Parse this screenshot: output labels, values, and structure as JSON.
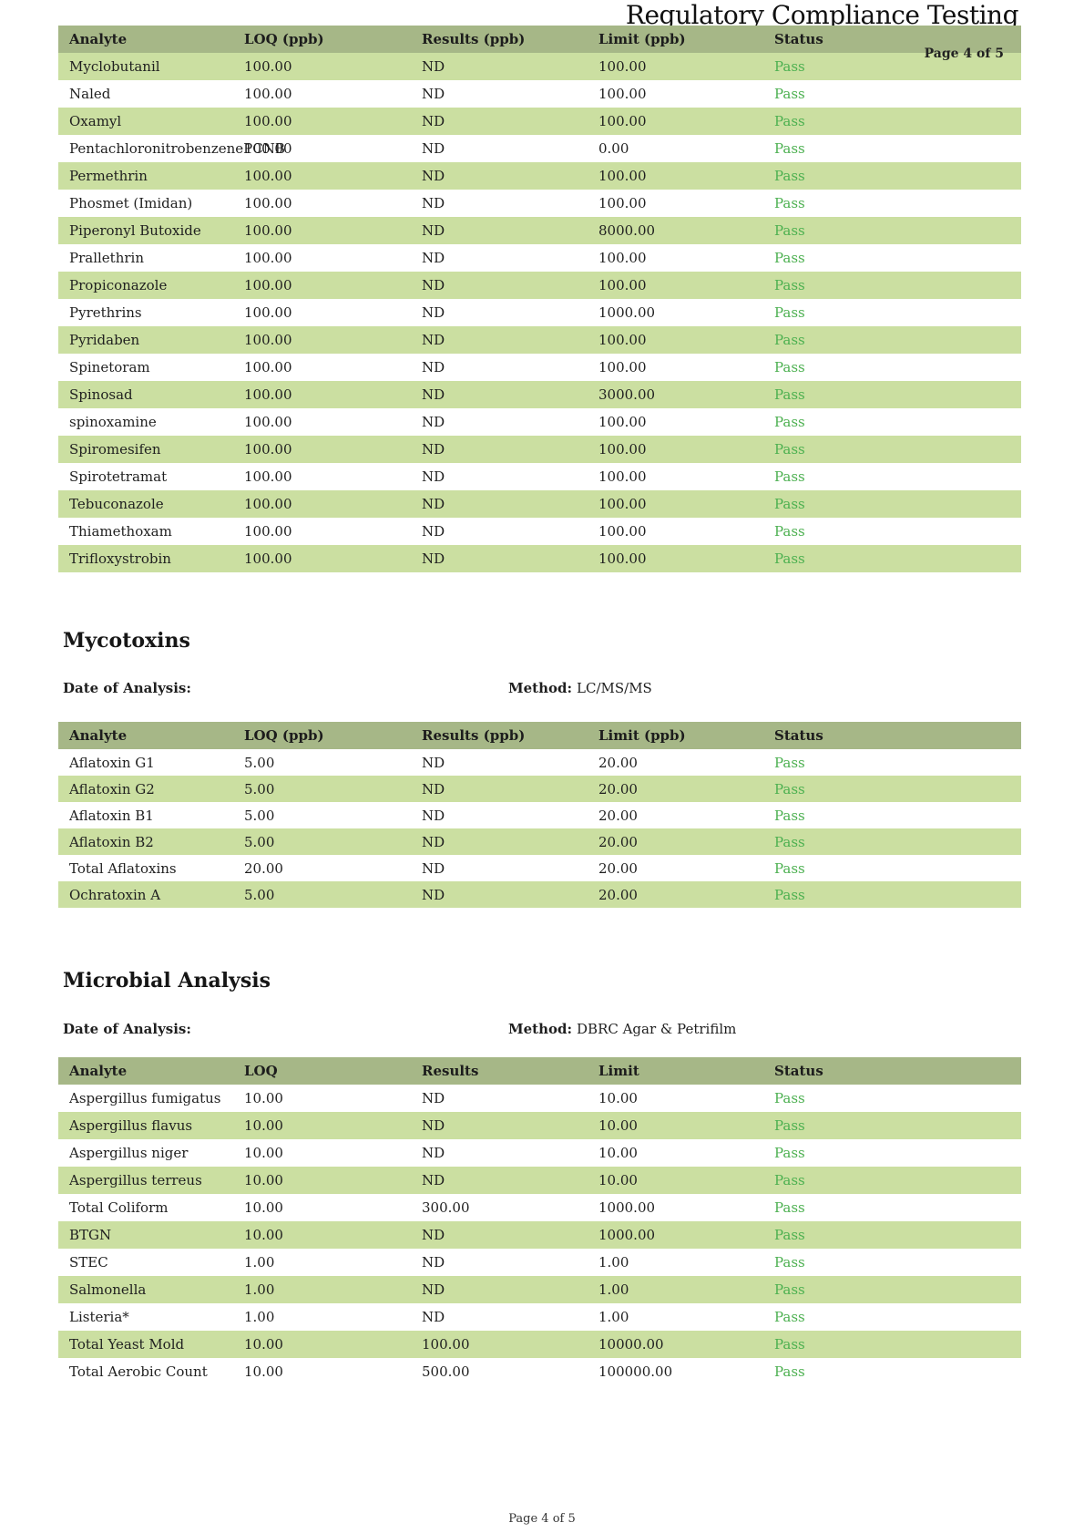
{
  "document": {
    "title": "Regulatory Compliance Testing",
    "page_indicator": "Page 4 of 5",
    "footer_page_label": "Page 4 of 5"
  },
  "labels": {
    "date_of_analysis": "Date of Analysis:",
    "method": "Method:"
  },
  "colors": {
    "table_header_bg": "#a6b787",
    "row_stripe_bg": "#cbdfa1",
    "pass_text": "#4cb050"
  },
  "tables": {
    "pesticides": {
      "columns": [
        "Analyte",
        "LOQ (ppb)",
        "Results (ppb)",
        "Limit (ppb)",
        "Status"
      ],
      "rows": [
        [
          "Myclobutanil",
          "100.00",
          "ND",
          "100.00",
          "Pass"
        ],
        [
          "Naled",
          "100.00",
          "ND",
          "100.00",
          "Pass"
        ],
        [
          "Oxamyl",
          "100.00",
          "ND",
          "100.00",
          "Pass"
        ],
        [
          "PentachloronitrobenzenePCNB",
          "100.00",
          "ND",
          "0.00",
          "Pass"
        ],
        [
          "Permethrin",
          "100.00",
          "ND",
          "100.00",
          "Pass"
        ],
        [
          "Phosmet (Imidan)",
          "100.00",
          "ND",
          "100.00",
          "Pass"
        ],
        [
          "Piperonyl Butoxide",
          "100.00",
          "ND",
          "8000.00",
          "Pass"
        ],
        [
          "Prallethrin",
          "100.00",
          "ND",
          "100.00",
          "Pass"
        ],
        [
          "Propiconazole",
          "100.00",
          "ND",
          "100.00",
          "Pass"
        ],
        [
          "Pyrethrins",
          "100.00",
          "ND",
          "1000.00",
          "Pass"
        ],
        [
          "Pyridaben",
          "100.00",
          "ND",
          "100.00",
          "Pass"
        ],
        [
          "Spinetoram",
          "100.00",
          "ND",
          "100.00",
          "Pass"
        ],
        [
          "Spinosad",
          "100.00",
          "ND",
          "3000.00",
          "Pass"
        ],
        [
          "spinoxamine",
          "100.00",
          "ND",
          "100.00",
          "Pass"
        ],
        [
          "Spiromesifen",
          "100.00",
          "ND",
          "100.00",
          "Pass"
        ],
        [
          "Spirotetramat",
          "100.00",
          "ND",
          "100.00",
          "Pass"
        ],
        [
          "Tebuconazole",
          "100.00",
          "ND",
          "100.00",
          "Pass"
        ],
        [
          "Thiamethoxam",
          "100.00",
          "ND",
          "100.00",
          "Pass"
        ],
        [
          "Trifloxystrobin",
          "100.00",
          "ND",
          "100.00",
          "Pass"
        ]
      ]
    },
    "mycotoxins": {
      "heading": "Mycotoxins",
      "method_value": "LC/MS/MS",
      "columns": [
        "Analyte",
        "LOQ (ppb)",
        "Results (ppb)",
        "Limit (ppb)",
        "Status"
      ],
      "rows": [
        [
          "Aflatoxin G1",
          "5.00",
          "ND",
          "20.00",
          "Pass"
        ],
        [
          "Aflatoxin G2",
          "5.00",
          "ND",
          "20.00",
          "Pass"
        ],
        [
          "Aflatoxin B1",
          "5.00",
          "ND",
          "20.00",
          "Pass"
        ],
        [
          "Aflatoxin B2",
          "5.00",
          "ND",
          "20.00",
          "Pass"
        ],
        [
          "Total Aflatoxins",
          "20.00",
          "ND",
          "20.00",
          "Pass"
        ],
        [
          "Ochratoxin A",
          "5.00",
          "ND",
          "20.00",
          "Pass"
        ]
      ]
    },
    "microbial": {
      "heading": "Microbial Analysis",
      "method_value": "DBRC Agar & Petrifilm",
      "columns": [
        "Analyte",
        "LOQ",
        "Results",
        "Limit",
        "Status"
      ],
      "rows": [
        [
          "Aspergillus fumigatus",
          "10.00",
          "ND",
          "10.00",
          "Pass"
        ],
        [
          "Aspergillus flavus",
          "10.00",
          "ND",
          "10.00",
          "Pass"
        ],
        [
          "Aspergillus niger",
          "10.00",
          "ND",
          "10.00",
          "Pass"
        ],
        [
          "Aspergillus terreus",
          "10.00",
          "ND",
          "10.00",
          "Pass"
        ],
        [
          "Total Coliform",
          "10.00",
          "300.00",
          "1000.00",
          "Pass"
        ],
        [
          "BTGN",
          "10.00",
          "ND",
          "1000.00",
          "Pass"
        ],
        [
          "STEC",
          "1.00",
          "ND",
          "1.00",
          "Pass"
        ],
        [
          "Salmonella",
          "1.00",
          "ND",
          "1.00",
          "Pass"
        ],
        [
          "Listeria*",
          "1.00",
          "ND",
          "1.00",
          "Pass"
        ],
        [
          "Total Yeast Mold",
          "10.00",
          "100.00",
          "10000.00",
          "Pass"
        ],
        [
          "Total Aerobic Count",
          "10.00",
          "500.00",
          "100000.00",
          "Pass"
        ]
      ]
    }
  }
}
